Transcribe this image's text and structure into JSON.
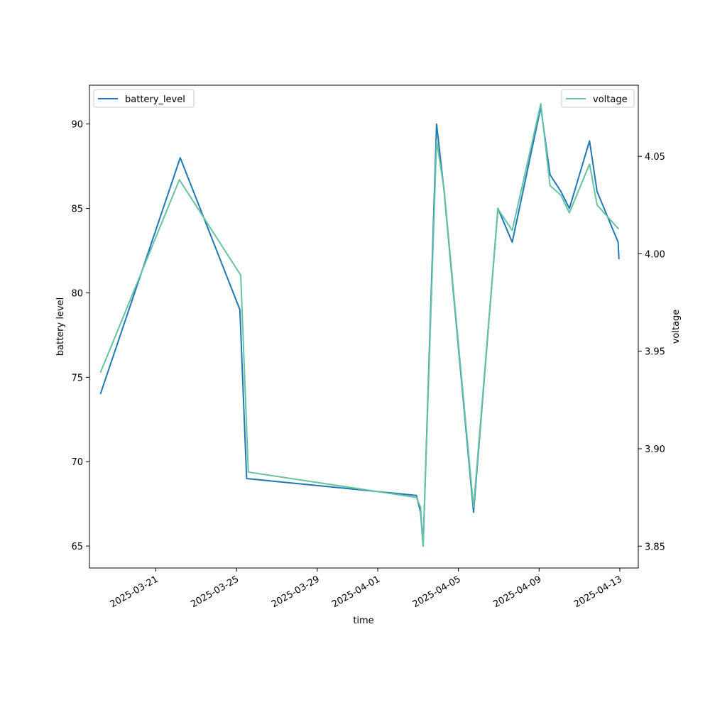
{
  "chart_data": {
    "type": "line",
    "xlabel": "time",
    "ylabel": "battery level",
    "ylabel_right": "voltage",
    "x_ticks": [
      "2025-03-21",
      "2025-03-25",
      "2025-03-29",
      "2025-04-01",
      "2025-04-05",
      "2025-04-09",
      "2025-04-13"
    ],
    "y_left_ticks": [
      65,
      70,
      75,
      80,
      85,
      90
    ],
    "y_right_ticks": [
      "3.85",
      "3.90",
      "3.95",
      "4.00",
      "4.05"
    ],
    "xlim": [
      "2025-03-17T17:00",
      "2025-04-13T22:00"
    ],
    "ylim_left": [
      63.7,
      92.3
    ],
    "ylim_right": [
      3.8388,
      4.0865
    ],
    "grid": false,
    "legend_left": "upper-left",
    "legend_right": "upper-right",
    "series": [
      {
        "name": "battery_level",
        "axis": "left",
        "color": "#1f77b4",
        "points": [
          [
            "2025-03-18T06:00",
            74
          ],
          [
            "2025-03-22T05:00",
            88
          ],
          [
            "2025-03-25T04:00",
            79
          ],
          [
            "2025-03-25T12:00",
            69
          ],
          [
            "2025-04-02T22:00",
            68
          ],
          [
            "2025-04-03T03:00",
            67
          ],
          [
            "2025-04-03T06:00",
            65
          ],
          [
            "2025-04-03T22:00",
            90
          ],
          [
            "2025-04-04T07:00",
            86
          ],
          [
            "2025-04-05T18:00",
            67
          ],
          [
            "2025-04-06T23:00",
            85
          ],
          [
            "2025-04-07T16:00",
            83
          ],
          [
            "2025-04-09T02:00",
            91
          ],
          [
            "2025-04-09T13:00",
            87
          ],
          [
            "2025-04-10T02:00",
            86
          ],
          [
            "2025-04-10T12:00",
            85
          ],
          [
            "2025-04-11T12:00",
            89
          ],
          [
            "2025-04-11T21:00",
            86
          ],
          [
            "2025-04-12T22:00",
            83
          ],
          [
            "2025-04-12T23:00",
            82
          ]
        ]
      },
      {
        "name": "voltage",
        "axis": "right",
        "color": "#66c2a5",
        "points": [
          [
            "2025-03-18T06:00",
            3.939
          ],
          [
            "2025-03-22T04:00",
            4.038
          ],
          [
            "2025-03-25T05:00",
            3.989
          ],
          [
            "2025-03-25T14:00",
            3.888
          ],
          [
            "2025-04-02T22:00",
            3.875
          ],
          [
            "2025-04-03T03:00",
            3.87
          ],
          [
            "2025-04-03T06:00",
            3.85
          ],
          [
            "2025-04-03T22:00",
            4.058
          ],
          [
            "2025-04-04T07:00",
            4.033
          ],
          [
            "2025-04-05T18:00",
            3.87
          ],
          [
            "2025-04-06T23:00",
            4.023
          ],
          [
            "2025-04-07T16:00",
            4.012
          ],
          [
            "2025-04-09T02:00",
            4.077
          ],
          [
            "2025-04-09T13:00",
            4.035
          ],
          [
            "2025-04-10T02:00",
            4.03
          ],
          [
            "2025-04-10T12:00",
            4.021
          ],
          [
            "2025-04-11T12:00",
            4.046
          ],
          [
            "2025-04-11T21:00",
            4.025
          ],
          [
            "2025-04-12T22:00",
            4.013
          ],
          [
            "2025-04-12T23:00",
            4.013
          ]
        ]
      }
    ]
  }
}
